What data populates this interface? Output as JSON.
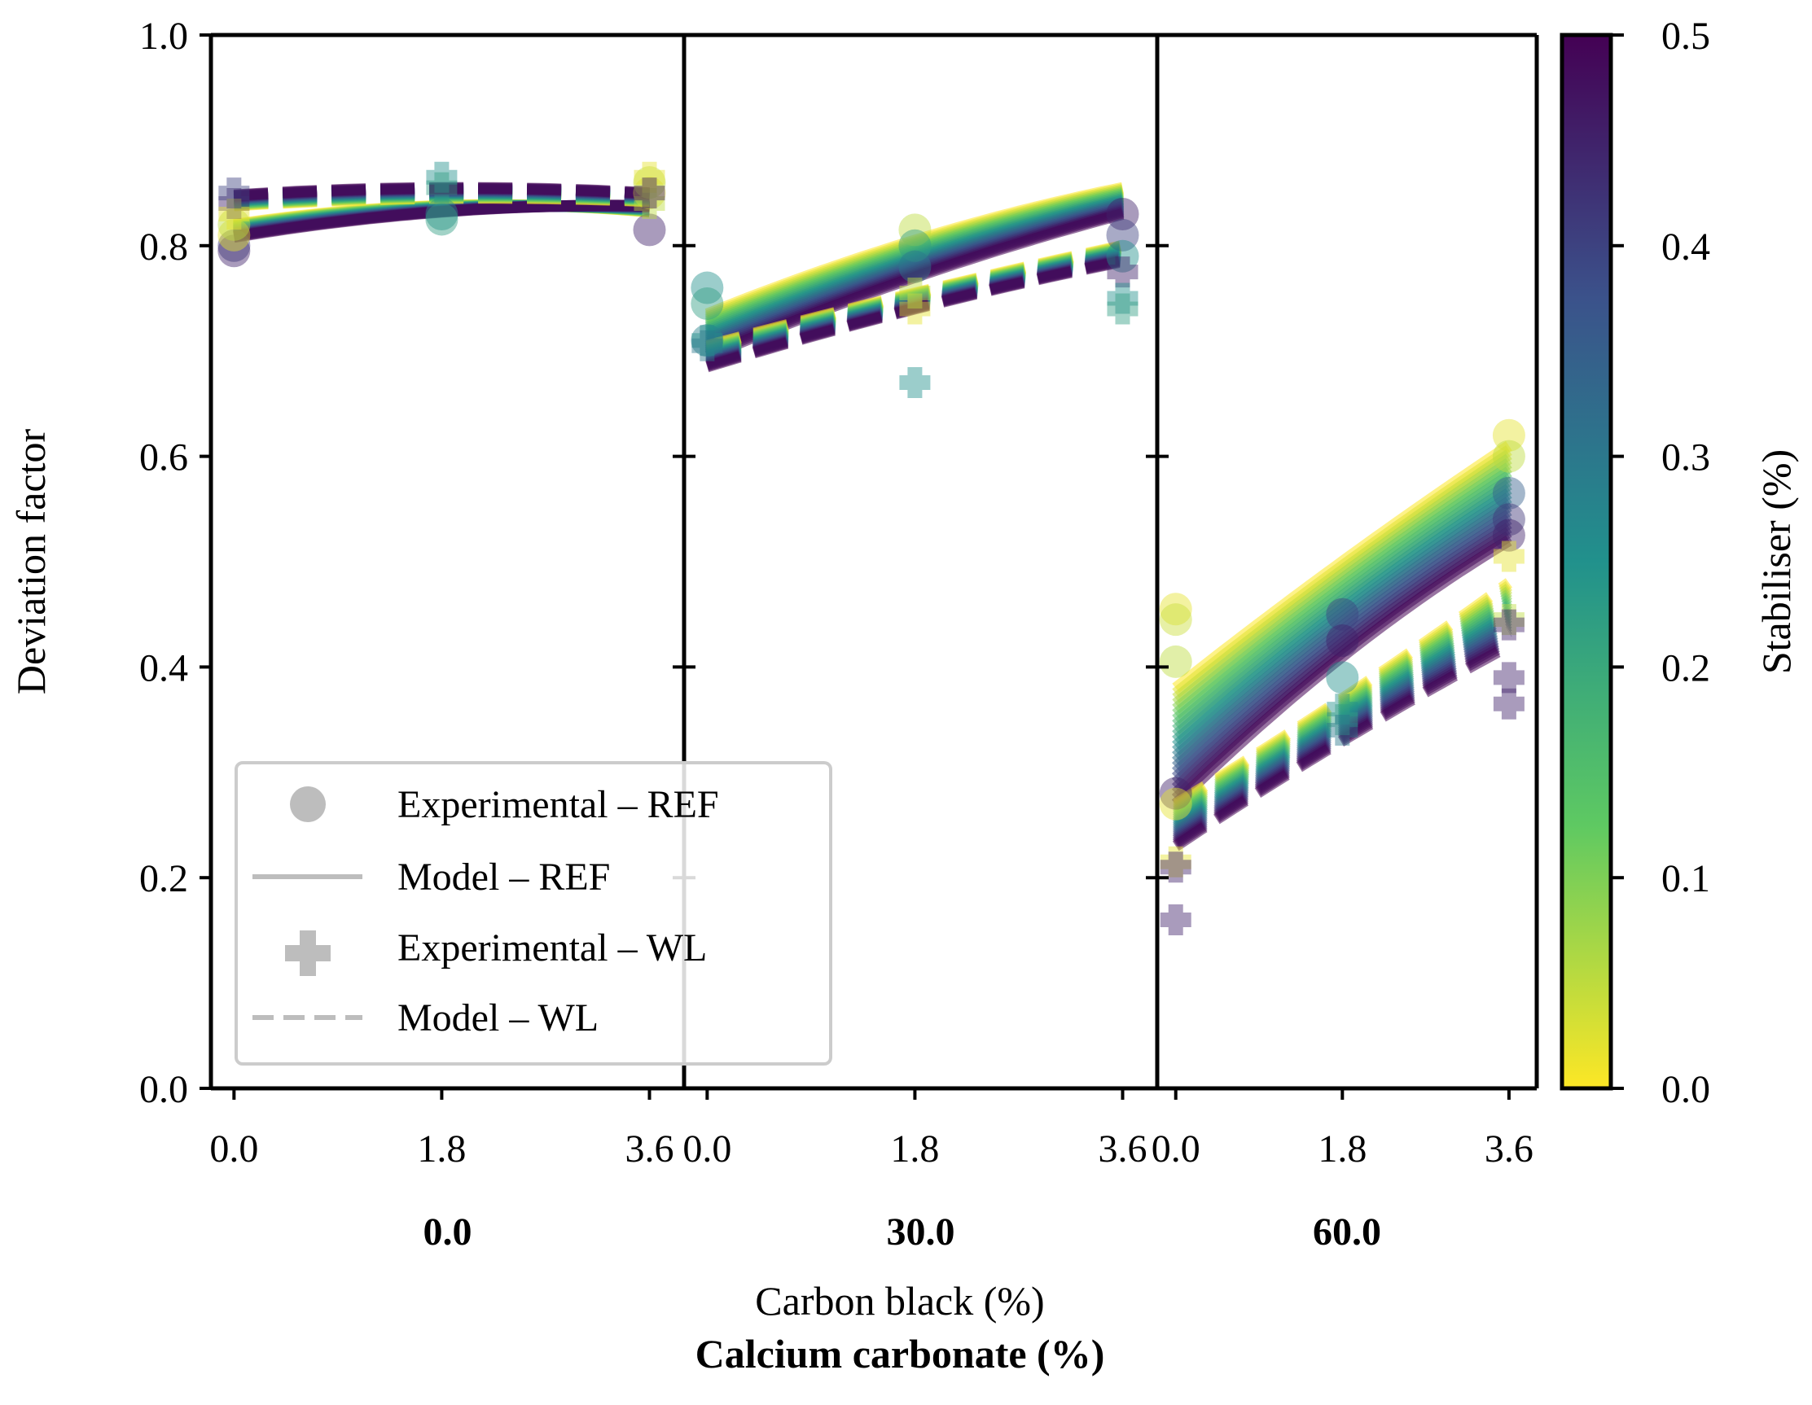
{
  "chart_data": {
    "type": "line",
    "ylabel": "Deviation factor",
    "xlabel": "Carbon black (%)",
    "group_label": "Calcium carbonate (%)",
    "ylim": [
      0.0,
      1.0
    ],
    "yticks": [
      "0.0",
      "0.2",
      "0.4",
      "0.6",
      "0.8",
      "1.0"
    ],
    "xlim": [
      -0.2,
      3.9
    ],
    "x_tick_values": [
      0.0,
      1.8,
      3.6
    ],
    "x_tick_labels": [
      "0.0",
      "1.8",
      "3.6"
    ],
    "legend_position": "lower-left",
    "legend": [
      {
        "label": "Experimental – REF",
        "marker": "circle"
      },
      {
        "label": "Model – REF",
        "marker": "solid-line"
      },
      {
        "label": "Experimental – WL",
        "marker": "plus"
      },
      {
        "label": "Model – WL",
        "marker": "dashed-line"
      }
    ],
    "colorbar": {
      "label": "Stabiliser (%)",
      "colormap": "viridis",
      "range": [
        0.0,
        0.5
      ],
      "ticks": [
        "0.0",
        "0.1",
        "0.2",
        "0.3",
        "0.4",
        "0.5"
      ]
    },
    "colormap_stops": [
      "#fde725",
      "#5ec962",
      "#21918c",
      "#3b528b",
      "#440154"
    ],
    "panels": [
      {
        "group": "0.0",
        "ref_model": {
          "s0": [
            0.82,
            0.838,
            0.832
          ],
          "s05": [
            0.808,
            0.832,
            0.838
          ]
        },
        "wl_model": {
          "s0": [
            0.838,
            0.845,
            0.842
          ],
          "s05": [
            0.848,
            0.855,
            0.85
          ]
        },
        "ref_exp": [
          {
            "x": 0.0,
            "y": 0.795,
            "s": 0.45
          },
          {
            "x": 0.0,
            "y": 0.8,
            "s": 0.42
          },
          {
            "x": 0.0,
            "y": 0.81,
            "s": 0.02
          },
          {
            "x": 0.0,
            "y": 0.82,
            "s": 0.05
          },
          {
            "x": 1.8,
            "y": 0.83,
            "s": 0.25
          },
          {
            "x": 1.8,
            "y": 0.825,
            "s": 0.22
          },
          {
            "x": 3.6,
            "y": 0.815,
            "s": 0.45
          },
          {
            "x": 3.6,
            "y": 0.85,
            "s": 0.02
          },
          {
            "x": 3.6,
            "y": 0.86,
            "s": 0.05
          }
        ],
        "wl_exp": [
          {
            "x": 0.0,
            "y": 0.84,
            "s": 0.45
          },
          {
            "x": 0.0,
            "y": 0.83,
            "s": 0.02
          },
          {
            "x": 0.0,
            "y": 0.85,
            "s": 0.4
          },
          {
            "x": 1.8,
            "y": 0.865,
            "s": 0.25
          },
          {
            "x": 1.8,
            "y": 0.855,
            "s": 0.22
          },
          {
            "x": 3.6,
            "y": 0.865,
            "s": 0.02
          },
          {
            "x": 3.6,
            "y": 0.84,
            "s": 0.05
          },
          {
            "x": 3.6,
            "y": 0.85,
            "s": 0.45
          }
        ]
      },
      {
        "group": "30.0",
        "ref_model": {
          "s0": [
            0.735,
            0.805,
            0.855
          ],
          "s05": [
            0.695,
            0.77,
            0.83
          ]
        },
        "wl_model": {
          "s0": [
            0.705,
            0.755,
            0.8
          ],
          "s05": [
            0.685,
            0.74,
            0.785
          ]
        },
        "ref_exp": [
          {
            "x": 0.0,
            "y": 0.76,
            "s": 0.25
          },
          {
            "x": 0.0,
            "y": 0.745,
            "s": 0.22
          },
          {
            "x": 0.0,
            "y": 0.71,
            "s": 0.28
          },
          {
            "x": 1.8,
            "y": 0.815,
            "s": 0.05
          },
          {
            "x": 1.8,
            "y": 0.8,
            "s": 0.22
          },
          {
            "x": 1.8,
            "y": 0.78,
            "s": 0.3
          },
          {
            "x": 3.6,
            "y": 0.83,
            "s": 0.45
          },
          {
            "x": 3.6,
            "y": 0.81,
            "s": 0.4
          },
          {
            "x": 3.6,
            "y": 0.79,
            "s": 0.25
          }
        ],
        "wl_exp": [
          {
            "x": 0.0,
            "y": 0.71,
            "s": 0.25
          },
          {
            "x": 0.0,
            "y": 0.705,
            "s": 0.3
          },
          {
            "x": 1.8,
            "y": 0.67,
            "s": 0.25
          },
          {
            "x": 1.8,
            "y": 0.74,
            "s": 0.02
          },
          {
            "x": 1.8,
            "y": 0.755,
            "s": 0.05
          },
          {
            "x": 3.6,
            "y": 0.775,
            "s": 0.45
          },
          {
            "x": 3.6,
            "y": 0.75,
            "s": 0.25
          },
          {
            "x": 3.6,
            "y": 0.74,
            "s": 0.22
          }
        ]
      },
      {
        "group": "60.0",
        "ref_model": {
          "s0": [
            0.38,
            0.5,
            0.61
          ],
          "s05": [
            0.27,
            0.41,
            0.52
          ]
        },
        "wl_model": {
          "s0": [
            0.27,
            0.37,
            0.48
          ],
          "s05": [
            0.23,
            0.33,
            0.42
          ]
        },
        "ref_exp": [
          {
            "x": 0.0,
            "y": 0.455,
            "s": 0.02
          },
          {
            "x": 0.0,
            "y": 0.445,
            "s": 0.04
          },
          {
            "x": 0.0,
            "y": 0.405,
            "s": 0.05
          },
          {
            "x": 0.0,
            "y": 0.28,
            "s": 0.45
          },
          {
            "x": 0.0,
            "y": 0.27,
            "s": 0.02
          },
          {
            "x": 1.8,
            "y": 0.45,
            "s": 0.4
          },
          {
            "x": 1.8,
            "y": 0.425,
            "s": 0.45
          },
          {
            "x": 1.8,
            "y": 0.39,
            "s": 0.25
          },
          {
            "x": 3.6,
            "y": 0.62,
            "s": 0.02
          },
          {
            "x": 3.6,
            "y": 0.6,
            "s": 0.05
          },
          {
            "x": 3.6,
            "y": 0.565,
            "s": 0.35
          },
          {
            "x": 3.6,
            "y": 0.54,
            "s": 0.42
          },
          {
            "x": 3.6,
            "y": 0.525,
            "s": 0.45
          }
        ],
        "wl_exp": [
          {
            "x": 0.0,
            "y": 0.215,
            "s": 0.02
          },
          {
            "x": 0.0,
            "y": 0.21,
            "s": 0.45
          },
          {
            "x": 0.0,
            "y": 0.16,
            "s": 0.45
          },
          {
            "x": 1.8,
            "y": 0.36,
            "s": 0.25
          },
          {
            "x": 1.8,
            "y": 0.35,
            "s": 0.22
          },
          {
            "x": 1.8,
            "y": 0.34,
            "s": 0.3
          },
          {
            "x": 3.6,
            "y": 0.505,
            "s": 0.02
          },
          {
            "x": 3.6,
            "y": 0.445,
            "s": 0.05
          },
          {
            "x": 3.6,
            "y": 0.44,
            "s": 0.45
          },
          {
            "x": 3.6,
            "y": 0.39,
            "s": 0.45
          },
          {
            "x": 3.6,
            "y": 0.365,
            "s": 0.45
          }
        ]
      }
    ]
  }
}
